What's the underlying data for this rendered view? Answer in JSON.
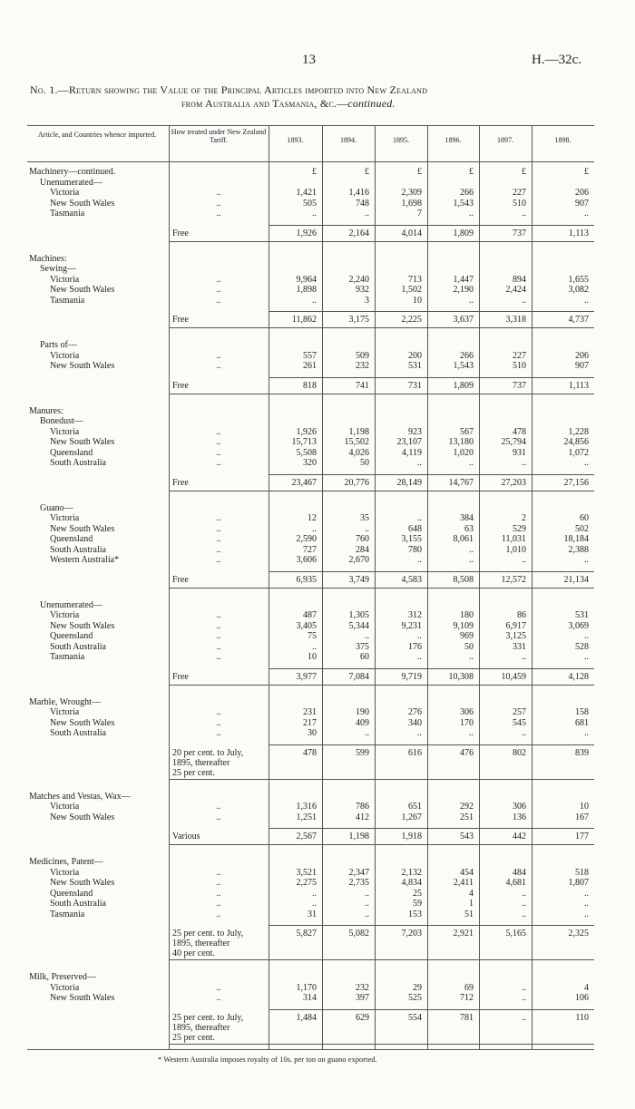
{
  "header": {
    "page_number": "13",
    "reference": "H.—32c.",
    "title_line1": "No. 1.—Return showing the Value of the Principal Articles imported into New Zealand",
    "title_line2": "from Australia and Tasmania, &c.—",
    "title_line2_italic": "continued."
  },
  "table": {
    "columns": [
      "Article, and Countries whence imported.",
      "How treated under New Zealand Tariff.",
      "1893.",
      "1894.",
      "1895.",
      "1896.",
      "1897.",
      "1898."
    ],
    "currency_row": [
      "£",
      "£",
      "£",
      "£",
      "£",
      "£"
    ],
    "sections": [
      {
        "title": "Machinery—continued.",
        "groups": [
          {
            "title": "Unenumerated—",
            "rows": [
              {
                "label": "Victoria",
                "tariff": "..",
                "values": [
                  "1,421",
                  "1,416",
                  "2,309",
                  "266",
                  "227",
                  "206"
                ]
              },
              {
                "label": "New South Wales",
                "tariff": "..",
                "values": [
                  "505",
                  "748",
                  "1,698",
                  "1,543",
                  "510",
                  "907"
                ]
              },
              {
                "label": "Tasmania",
                "tariff": "..",
                "values": [
                  "..",
                  "..",
                  "7",
                  "..",
                  "..",
                  ".."
                ]
              }
            ],
            "total": {
              "tariff": "Free",
              "values": [
                "1,926",
                "2,164",
                "4,014",
                "1,809",
                "737",
                "1,113"
              ]
            }
          }
        ]
      },
      {
        "title": "Machines:",
        "groups": [
          {
            "title": "Sewing—",
            "rows": [
              {
                "label": "Victoria",
                "tariff": "..",
                "values": [
                  "9,964",
                  "2,240",
                  "713",
                  "1,447",
                  "894",
                  "1,655"
                ]
              },
              {
                "label": "New South Wales",
                "tariff": "..",
                "values": [
                  "1,898",
                  "932",
                  "1,502",
                  "2,190",
                  "2,424",
                  "3,082"
                ]
              },
              {
                "label": "Tasmania",
                "tariff": "..",
                "values": [
                  "..",
                  "3",
                  "10",
                  "..",
                  "..",
                  ".."
                ]
              }
            ],
            "total": {
              "tariff": "Free",
              "values": [
                "11,862",
                "3,175",
                "2,225",
                "3,637",
                "3,318",
                "4,737"
              ]
            }
          },
          {
            "title": "Parts of—",
            "rows": [
              {
                "label": "Victoria",
                "tariff": "..",
                "values": [
                  "557",
                  "509",
                  "200",
                  "266",
                  "227",
                  "206"
                ]
              },
              {
                "label": "New South Wales",
                "tariff": "..",
                "values": [
                  "261",
                  "232",
                  "531",
                  "1,543",
                  "510",
                  "907"
                ]
              }
            ],
            "total": {
              "tariff": "Free",
              "values": [
                "818",
                "741",
                "731",
                "1,809",
                "737",
                "1,113"
              ]
            }
          }
        ]
      },
      {
        "title": "Manures:",
        "groups": [
          {
            "title": "Bonedust—",
            "rows": [
              {
                "label": "Victoria",
                "tariff": "..",
                "values": [
                  "1,926",
                  "1,198",
                  "923",
                  "567",
                  "478",
                  "1,228"
                ]
              },
              {
                "label": "New South Wales",
                "tariff": "..",
                "values": [
                  "15,713",
                  "15,502",
                  "23,107",
                  "13,180",
                  "25,794",
                  "24,856"
                ]
              },
              {
                "label": "Queensland",
                "tariff": "..",
                "values": [
                  "5,508",
                  "4,026",
                  "4,119",
                  "1,020",
                  "931",
                  "1,072"
                ]
              },
              {
                "label": "South Australia",
                "tariff": "..",
                "values": [
                  "320",
                  "50",
                  "..",
                  "..",
                  "..",
                  ".."
                ]
              }
            ],
            "total": {
              "tariff": "Free",
              "values": [
                "23,467",
                "20,776",
                "28,149",
                "14,767",
                "27,203",
                "27,156"
              ]
            }
          },
          {
            "title": "Guano—",
            "rows": [
              {
                "label": "Victoria",
                "tariff": "..",
                "values": [
                  "12",
                  "35",
                  "..",
                  "384",
                  "2",
                  "60"
                ]
              },
              {
                "label": "New South Wales",
                "tariff": "..",
                "values": [
                  "..",
                  "..",
                  "648",
                  "63",
                  "529",
                  "502"
                ]
              },
              {
                "label": "Queensland",
                "tariff": "..",
                "values": [
                  "2,590",
                  "760",
                  "3,155",
                  "8,061",
                  "11,031",
                  "18,184"
                ]
              },
              {
                "label": "South Australia",
                "tariff": "..",
                "values": [
                  "727",
                  "284",
                  "780",
                  "..",
                  "1,010",
                  "2,388"
                ]
              },
              {
                "label": "Western Australia*",
                "tariff": "..",
                "values": [
                  "3,606",
                  "2,670",
                  "..",
                  "..",
                  "..",
                  ".."
                ]
              }
            ],
            "total": {
              "tariff": "Free",
              "values": [
                "6,935",
                "3,749",
                "4,583",
                "8,508",
                "12,572",
                "21,134"
              ]
            }
          },
          {
            "title": "Unenumerated—",
            "rows": [
              {
                "label": "Victoria",
                "tariff": "..",
                "values": [
                  "487",
                  "1,305",
                  "312",
                  "180",
                  "86",
                  "531"
                ]
              },
              {
                "label": "New South Wales",
                "tariff": "..",
                "values": [
                  "3,405",
                  "5,344",
                  "9,231",
                  "9,109",
                  "6,917",
                  "3,069"
                ]
              },
              {
                "label": "Queensland",
                "tariff": "..",
                "values": [
                  "75",
                  "..",
                  "..",
                  "969",
                  "3,125",
                  ".."
                ]
              },
              {
                "label": "South Australia",
                "tariff": "..",
                "values": [
                  "..",
                  "375",
                  "176",
                  "50",
                  "331",
                  "528"
                ]
              },
              {
                "label": "Tasmania",
                "tariff": "..",
                "values": [
                  "10",
                  "60",
                  "..",
                  "..",
                  "..",
                  ".."
                ]
              }
            ],
            "total": {
              "tariff": "Free",
              "values": [
                "3,977",
                "7,084",
                "9,719",
                "10,308",
                "10,459",
                "4,128"
              ]
            }
          }
        ]
      },
      {
        "title": "Marble, Wrought—",
        "groups": [
          {
            "rows": [
              {
                "label": "Victoria",
                "tariff": "..",
                "values": [
                  "231",
                  "190",
                  "276",
                  "306",
                  "257",
                  "158"
                ]
              },
              {
                "label": "New South Wales",
                "tariff": "..",
                "values": [
                  "217",
                  "409",
                  "340",
                  "170",
                  "545",
                  "681"
                ]
              },
              {
                "label": "South Australia",
                "tariff": "..",
                "values": [
                  "30",
                  "..",
                  "..",
                  "..",
                  "..",
                  ".."
                ]
              }
            ],
            "total": {
              "tariff": "20 per cent. to July,\n1895, thereafter\n25 per cent.",
              "values": [
                "478",
                "599",
                "616",
                "476",
                "802",
                "839"
              ]
            }
          }
        ]
      },
      {
        "title": "Matches and Vestas, Wax—",
        "groups": [
          {
            "rows": [
              {
                "label": "Victoria",
                "tariff": "..",
                "values": [
                  "1,316",
                  "786",
                  "651",
                  "292",
                  "306",
                  "10"
                ]
              },
              {
                "label": "New South Wales",
                "tariff": "..",
                "values": [
                  "1,251",
                  "412",
                  "1,267",
                  "251",
                  "136",
                  "167"
                ]
              }
            ],
            "total": {
              "tariff": "Various",
              "values": [
                "2,567",
                "1,198",
                "1,918",
                "543",
                "442",
                "177"
              ]
            }
          }
        ]
      },
      {
        "title": "Medicines, Patent—",
        "groups": [
          {
            "rows": [
              {
                "label": "Victoria",
                "tariff": "..",
                "values": [
                  "3,521",
                  "2,347",
                  "2,132",
                  "454",
                  "484",
                  "518"
                ]
              },
              {
                "label": "New South Wales",
                "tariff": "..",
                "values": [
                  "2,275",
                  "2,735",
                  "4,834",
                  "2,411",
                  "4,681",
                  "1,807"
                ]
              },
              {
                "label": "Queensland",
                "tariff": "..",
                "values": [
                  "..",
                  "..",
                  "25",
                  "4",
                  "..",
                  ".."
                ]
              },
              {
                "label": "South Australia",
                "tariff": "..",
                "values": [
                  "..",
                  "..",
                  "59",
                  "1",
                  "..",
                  ".."
                ]
              },
              {
                "label": "Tasmania",
                "tariff": "..",
                "values": [
                  "31",
                  "..",
                  "153",
                  "51",
                  "..",
                  ".."
                ]
              }
            ],
            "total": {
              "tariff": "25 per cent. to July,\n1895, thereafter\n40 per cent.",
              "values": [
                "5,827",
                "5,082",
                "7,203",
                "2,921",
                "5,165",
                "2,325"
              ]
            }
          }
        ]
      },
      {
        "title": "Milk, Preserved—",
        "groups": [
          {
            "rows": [
              {
                "label": "Victoria",
                "tariff": "..",
                "values": [
                  "1,170",
                  "232",
                  "29",
                  "69",
                  "..",
                  "4"
                ]
              },
              {
                "label": "New South Wales",
                "tariff": "..",
                "values": [
                  "314",
                  "397",
                  "525",
                  "712",
                  "..",
                  "106"
                ]
              }
            ],
            "total": {
              "tariff": "25 per cent. to July,\n1895, thereafter\n25 per cent.",
              "values": [
                "1,484",
                "629",
                "554",
                "781",
                "..",
                "110"
              ]
            }
          }
        ]
      }
    ]
  },
  "footnote": "* Western Australia imposes royalty of 10s. per ton on guano exported."
}
